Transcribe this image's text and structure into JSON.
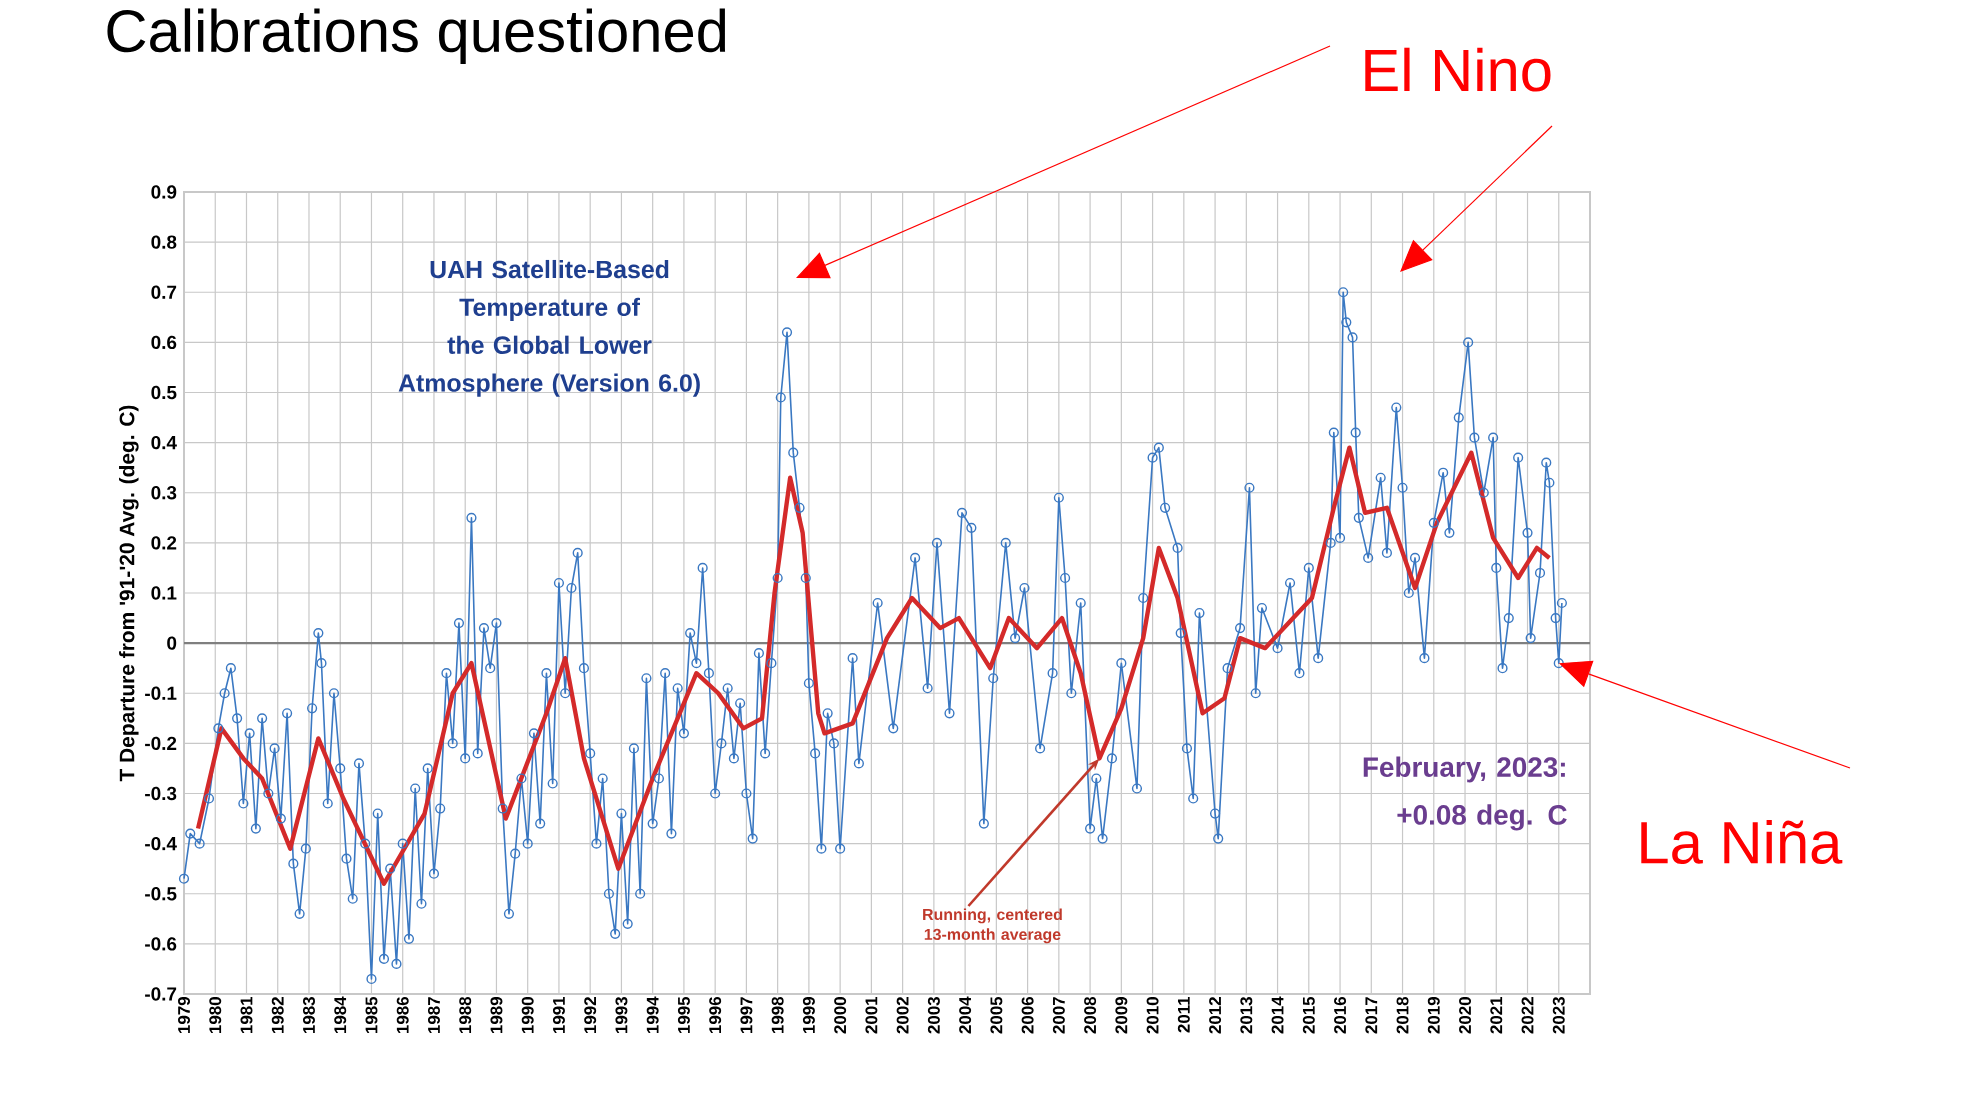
{
  "chart_data": {
    "type": "line",
    "title": "Calibrations questioned",
    "ylabel": "T Departure from '91-'20 Avg. (deg. C)",
    "xlim": [
      1979,
      2024
    ],
    "ylim": [
      -0.7,
      0.9
    ],
    "xticks": [
      1979,
      1980,
      1981,
      1982,
      1983,
      1984,
      1985,
      1986,
      1987,
      1988,
      1989,
      1990,
      1991,
      1992,
      1993,
      1994,
      1995,
      1996,
      1997,
      1998,
      1999,
      2000,
      2001,
      2002,
      2003,
      2004,
      2005,
      2006,
      2007,
      2008,
      2009,
      2010,
      2011,
      2012,
      2013,
      2014,
      2015,
      2016,
      2017,
      2018,
      2019,
      2020,
      2021,
      2022,
      2023
    ],
    "yticks": [
      -0.7,
      -0.6,
      -0.5,
      -0.4,
      -0.3,
      -0.2,
      -0.1,
      0,
      0.1,
      0.2,
      0.3,
      0.4,
      0.5,
      0.6,
      0.7,
      0.8,
      0.9
    ],
    "grid": true,
    "ref_lines": [
      {
        "axis": "y",
        "value": 0,
        "color": "#7f7f7f"
      }
    ],
    "series": [
      {
        "color": "#3a78c2",
        "marker": "circle",
        "x": [
          1979.0,
          1979.2,
          1979.5,
          1979.8,
          1980.1,
          1980.3,
          1980.5,
          1980.7,
          1980.9,
          1981.1,
          1981.3,
          1981.5,
          1981.7,
          1981.9,
          1982.1,
          1982.3,
          1982.5,
          1982.7,
          1982.9,
          1983.1,
          1983.3,
          1983.4,
          1983.6,
          1983.8,
          1984.0,
          1984.2,
          1984.4,
          1984.6,
          1984.8,
          1985.0,
          1985.2,
          1985.4,
          1985.6,
          1985.8,
          1986.0,
          1986.2,
          1986.4,
          1986.6,
          1986.8,
          1987.0,
          1987.2,
          1987.4,
          1987.6,
          1987.8,
          1988.0,
          1988.2,
          1988.4,
          1988.6,
          1988.8,
          1989.0,
          1989.2,
          1989.4,
          1989.6,
          1989.8,
          1990.0,
          1990.2,
          1990.4,
          1990.6,
          1990.8,
          1991.0,
          1991.2,
          1991.4,
          1991.6,
          1991.8,
          1992.0,
          1992.2,
          1992.4,
          1992.6,
          1992.8,
          1993.0,
          1993.2,
          1993.4,
          1993.6,
          1993.8,
          1994.0,
          1994.2,
          1994.4,
          1994.6,
          1994.8,
          1995.0,
          1995.2,
          1995.4,
          1995.6,
          1995.8,
          1996.0,
          1996.2,
          1996.4,
          1996.6,
          1996.8,
          1997.0,
          1997.2,
          1997.4,
          1997.6,
          1997.8,
          1998.0,
          1998.1,
          1998.3,
          1998.5,
          1998.7,
          1998.9,
          1999.0,
          1999.2,
          1999.4,
          1999.6,
          1999.8,
          2000.0,
          2000.4,
          2000.6,
          2001.2,
          2001.7,
          2002.4,
          2002.8,
          2003.1,
          2003.5,
          2003.9,
          2004.2,
          2004.6,
          2004.9,
          2005.3,
          2005.6,
          2005.9,
          2006.4,
          2006.8,
          2007.0,
          2007.2,
          2007.4,
          2007.7,
          2008.0,
          2008.2,
          2008.4,
          2008.7,
          2009.0,
          2009.5,
          2009.7,
          2010.0,
          2010.2,
          2010.4,
          2010.8,
          2010.9,
          2011.1,
          2011.3,
          2011.5,
          2012.0,
          2012.1,
          2012.4,
          2012.8,
          2013.1,
          2013.3,
          2013.5,
          2014.0,
          2014.4,
          2014.7,
          2015.0,
          2015.3,
          2015.7,
          2015.8,
          2016.0,
          2016.1,
          2016.2,
          2016.4,
          2016.5,
          2016.6,
          2016.9,
          2017.3,
          2017.5,
          2017.8,
          2018.0,
          2018.2,
          2018.4,
          2018.7,
          2019.0,
          2019.3,
          2019.5,
          2019.8,
          2020.1,
          2020.3,
          2020.6,
          2020.9,
          2021.0,
          2021.2,
          2021.4,
          2021.7,
          2022.0,
          2022.1,
          2022.4,
          2022.6,
          2022.7,
          2022.9,
          2023.0,
          2023.1
        ],
        "values": [
          -0.47,
          -0.38,
          -0.4,
          -0.31,
          -0.17,
          -0.1,
          -0.05,
          -0.15,
          -0.32,
          -0.18,
          -0.37,
          -0.15,
          -0.3,
          -0.21,
          -0.35,
          -0.14,
          -0.44,
          -0.54,
          -0.41,
          -0.13,
          0.02,
          -0.04,
          -0.32,
          -0.1,
          -0.25,
          -0.43,
          -0.51,
          -0.24,
          -0.4,
          -0.67,
          -0.34,
          -0.63,
          -0.45,
          -0.64,
          -0.4,
          -0.59,
          -0.29,
          -0.52,
          -0.25,
          -0.46,
          -0.33,
          -0.06,
          -0.2,
          0.04,
          -0.23,
          0.25,
          -0.22,
          0.03,
          -0.05,
          0.04,
          -0.33,
          -0.54,
          -0.42,
          -0.27,
          -0.4,
          -0.18,
          -0.36,
          -0.06,
          -0.28,
          0.12,
          -0.1,
          0.11,
          0.18,
          -0.05,
          -0.22,
          -0.4,
          -0.27,
          -0.5,
          -0.58,
          -0.34,
          -0.56,
          -0.21,
          -0.5,
          -0.07,
          -0.36,
          -0.27,
          -0.06,
          -0.38,
          -0.09,
          -0.18,
          0.02,
          -0.04,
          0.15,
          -0.06,
          -0.3,
          -0.2,
          -0.09,
          -0.23,
          -0.12,
          -0.3,
          -0.39,
          -0.02,
          -0.22,
          -0.04,
          0.13,
          0.49,
          0.62,
          0.38,
          0.27,
          0.13,
          -0.08,
          -0.22,
          -0.41,
          -0.14,
          -0.2,
          -0.41,
          -0.03,
          -0.24,
          0.08,
          -0.17,
          0.17,
          -0.09,
          0.2,
          -0.14,
          0.26,
          0.23,
          -0.36,
          -0.07,
          0.2,
          0.01,
          0.11,
          -0.21,
          -0.06,
          0.29,
          0.13,
          -0.1,
          0.08,
          -0.37,
          -0.27,
          -0.39,
          -0.23,
          -0.04,
          -0.29,
          0.09,
          0.37,
          0.39,
          0.27,
          0.19,
          0.02,
          -0.21,
          -0.31,
          0.06,
          -0.34,
          -0.39,
          -0.05,
          0.03,
          0.31,
          -0.1,
          0.07,
          -0.01,
          0.12,
          -0.06,
          0.15,
          -0.03,
          0.2,
          0.42,
          0.21,
          0.7,
          0.64,
          0.61,
          0.42,
          0.25,
          0.17,
          0.33,
          0.18,
          0.47,
          0.31,
          0.1,
          0.17,
          -0.03,
          0.24,
          0.34,
          0.22,
          0.45,
          0.6,
          0.41,
          0.3,
          0.41,
          0.15,
          -0.05,
          0.05,
          0.37,
          0.22,
          0.01,
          0.14,
          0.36,
          0.32,
          0.05,
          -0.04,
          0.08
        ]
      },
      {
        "color": "#d42a2a",
        "marker": "none",
        "x": [
          1979.45,
          1980.2,
          1980.9,
          1981.5,
          1982.4,
          1983.3,
          1984.1,
          1985.4,
          1986.7,
          1987.6,
          1988.2,
          1989.3,
          1990.6,
          1991.2,
          1991.8,
          1992.9,
          1994.0,
          1995.4,
          1996.1,
          1996.9,
          1997.5,
          1997.9,
          1998.4,
          1998.8,
          1999.3,
          1999.5,
          2000.4,
          2001.5,
          2002.3,
          2003.2,
          2003.8,
          2004.8,
          2005.4,
          2006.3,
          2007.1,
          2007.7,
          2008.3,
          2009.0,
          2009.7,
          2010.2,
          2010.8,
          2011.6,
          2012.3,
          2012.8,
          2013.6,
          2014.5,
          2015.1,
          2015.8,
          2016.3,
          2016.8,
          2017.5,
          2018.4,
          2019.1,
          2020.2,
          2020.9,
          2021.7,
          2022.3,
          2022.7
        ],
        "values": [
          -0.37,
          -0.17,
          -0.23,
          -0.27,
          -0.41,
          -0.19,
          -0.31,
          -0.48,
          -0.34,
          -0.1,
          -0.04,
          -0.35,
          -0.14,
          -0.03,
          -0.23,
          -0.45,
          -0.27,
          -0.06,
          -0.1,
          -0.17,
          -0.15,
          0.1,
          0.33,
          0.22,
          -0.14,
          -0.18,
          -0.16,
          0.01,
          0.09,
          0.03,
          0.05,
          -0.05,
          0.05,
          -0.01,
          0.05,
          -0.06,
          -0.23,
          -0.13,
          0.01,
          0.19,
          0.09,
          -0.14,
          -0.11,
          0.01,
          -0.01,
          0.05,
          0.09,
          0.27,
          0.39,
          0.26,
          0.27,
          0.11,
          0.24,
          0.38,
          0.21,
          0.13,
          0.19,
          0.17
        ]
      }
    ],
    "annotations": [
      "UAH Satellite-Based Temperature of the Global Lower Atmosphere (Version 6.0)",
      "February, 2023: +0.08 deg. C",
      {
        "text": "Running, centered 13-month average",
        "x": 2008.3,
        "y": -0.23
      },
      "El Nino",
      {
        "text": "La Niña",
        "x": 2023.0,
        "y": -0.04
      }
    ]
  }
}
